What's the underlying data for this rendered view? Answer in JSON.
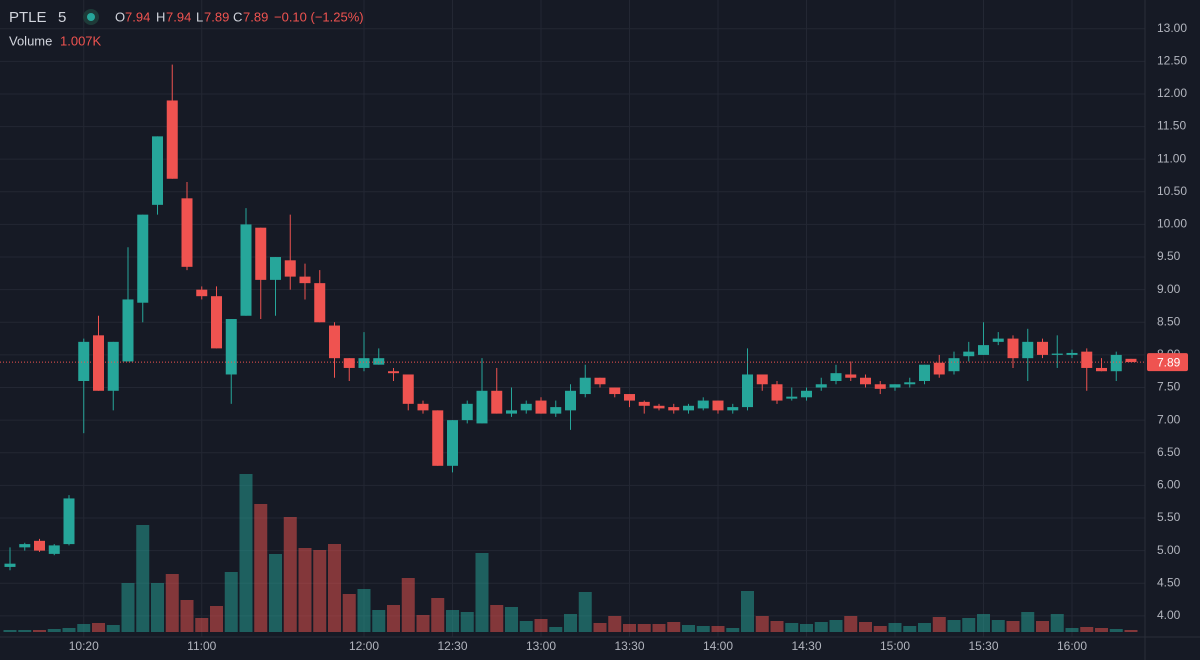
{
  "header": {
    "symbol": "PTLE",
    "interval": "5",
    "open_label": "O",
    "high_label": "H",
    "low_label": "L",
    "close_label": "C",
    "change": "−0.10 (−1.25%)",
    "volume_label": "Volume",
    "volume_value": "1.007K"
  },
  "chart_data": {
    "type": "candlestick",
    "categories": [
      null,
      null,
      null,
      null,
      null,
      "10:20",
      null,
      null,
      null,
      null,
      null,
      null,
      null,
      "11:00",
      null,
      null,
      null,
      null,
      null,
      null,
      null,
      null,
      null,
      null,
      "12:00",
      null,
      null,
      null,
      null,
      null,
      "12:30",
      null,
      null,
      null,
      null,
      null,
      "13:00",
      null,
      null,
      null,
      null,
      null,
      "13:30",
      null,
      null,
      null,
      null,
      null,
      "14:00",
      null,
      null,
      null,
      null,
      null,
      "14:30",
      null,
      null,
      null,
      null,
      null,
      "15:00",
      null,
      null,
      null,
      null,
      null,
      "15:30",
      null,
      null,
      null,
      null,
      null,
      "16:00",
      null,
      null,
      null,
      null
    ],
    "open": [
      4.75,
      5.05,
      5.15,
      4.95,
      5.1,
      7.6,
      8.3,
      7.45,
      7.9,
      8.8,
      10.3,
      11.9,
      10.4,
      9.0,
      8.9,
      7.7,
      8.6,
      9.95,
      9.15,
      9.45,
      9.2,
      9.1,
      8.45,
      7.95,
      7.8,
      7.85,
      7.75,
      7.7,
      7.25,
      7.15,
      6.3,
      7.0,
      6.95,
      7.45,
      7.1,
      7.15,
      7.3,
      7.1,
      7.15,
      7.4,
      7.65,
      7.5,
      7.4,
      7.28,
      7.22,
      7.2,
      7.15,
      7.18,
      7.3,
      7.15,
      7.2,
      7.7,
      7.55,
      7.33,
      7.35,
      7.5,
      7.6,
      7.7,
      7.65,
      7.55,
      7.5,
      7.55,
      7.6,
      7.88,
      7.75,
      7.98,
      8.0,
      8.2,
      8.25,
      7.95,
      8.2,
      8.0,
      8.0,
      8.05,
      7.8,
      7.75,
      7.94
    ],
    "high": [
      5.05,
      5.12,
      5.18,
      5.1,
      5.85,
      8.25,
      8.6,
      8.2,
      9.65,
      10.15,
      11.35,
      12.45,
      10.65,
      9.05,
      9.05,
      8.55,
      10.25,
      9.95,
      9.5,
      10.15,
      9.4,
      9.3,
      8.5,
      7.95,
      8.35,
      8.1,
      7.8,
      7.7,
      7.3,
      7.15,
      7.0,
      7.3,
      7.95,
      7.8,
      7.5,
      7.3,
      7.35,
      7.3,
      7.55,
      7.85,
      7.65,
      7.5,
      7.4,
      7.3,
      7.25,
      7.25,
      7.25,
      7.35,
      7.3,
      7.25,
      8.1,
      7.7,
      7.6,
      7.5,
      7.5,
      7.65,
      7.85,
      7.9,
      7.7,
      7.6,
      7.55,
      7.65,
      7.85,
      8.0,
      8.05,
      8.2,
      8.5,
      8.35,
      8.3,
      8.4,
      8.25,
      8.3,
      8.08,
      8.1,
      7.95,
      8.05,
      7.94
    ],
    "low": [
      4.7,
      5.0,
      4.98,
      4.93,
      5.08,
      6.8,
      7.45,
      7.15,
      7.9,
      8.5,
      10.15,
      10.7,
      9.3,
      8.85,
      8.1,
      7.25,
      8.6,
      8.55,
      8.6,
      9.0,
      8.85,
      8.5,
      7.65,
      7.6,
      7.75,
      7.85,
      7.6,
      7.15,
      7.1,
      6.3,
      6.2,
      6.95,
      6.95,
      7.1,
      7.05,
      7.1,
      7.1,
      7.05,
      6.85,
      7.35,
      7.5,
      7.35,
      7.2,
      7.1,
      7.15,
      7.1,
      7.1,
      7.15,
      7.1,
      7.1,
      7.15,
      7.45,
      7.25,
      7.3,
      7.3,
      7.45,
      7.55,
      7.6,
      7.5,
      7.4,
      7.45,
      7.5,
      7.55,
      7.65,
      7.7,
      7.9,
      8.0,
      8.15,
      7.8,
      7.6,
      7.95,
      7.8,
      7.95,
      7.45,
      7.75,
      7.6,
      7.89
    ],
    "close": [
      4.8,
      5.1,
      5.0,
      5.08,
      5.8,
      8.2,
      7.45,
      8.2,
      8.85,
      10.15,
      11.35,
      10.7,
      9.35,
      8.9,
      8.1,
      8.55,
      10.0,
      9.15,
      9.5,
      9.2,
      9.1,
      8.5,
      7.95,
      7.8,
      7.95,
      7.95,
      7.72,
      7.25,
      7.15,
      6.3,
      7.0,
      7.25,
      7.45,
      7.1,
      7.15,
      7.25,
      7.1,
      7.2,
      7.45,
      7.65,
      7.55,
      7.4,
      7.3,
      7.22,
      7.18,
      7.15,
      7.22,
      7.3,
      7.15,
      7.2,
      7.7,
      7.55,
      7.3,
      7.36,
      7.45,
      7.55,
      7.72,
      7.65,
      7.55,
      7.48,
      7.55,
      7.58,
      7.85,
      7.7,
      7.95,
      8.05,
      8.15,
      8.25,
      7.95,
      8.2,
      8.0,
      8.02,
      8.03,
      7.8,
      7.75,
      8.0,
      7.89
    ],
    "volume": [
      1000,
      1000,
      1000,
      1500,
      2000,
      4000,
      4500,
      3500,
      24500,
      53500,
      24500,
      29000,
      16000,
      7000,
      13000,
      30000,
      79000,
      64000,
      39000,
      57500,
      42000,
      41000,
      44000,
      19000,
      21500,
      11000,
      13500,
      27000,
      8500,
      17000,
      11000,
      10000,
      39500,
      13500,
      12500,
      5500,
      6500,
      2500,
      9000,
      20000,
      4500,
      8000,
      4000,
      4000,
      4000,
      5000,
      3500,
      3000,
      3000,
      2000,
      20500,
      8000,
      5500,
      4500,
      4000,
      5000,
      6000,
      8000,
      5000,
      3000,
      4500,
      3000,
      4500,
      7500,
      6000,
      7000,
      9000,
      6000,
      5500,
      10000,
      5500,
      9000,
      2000,
      2500,
      2000,
      1500,
      1007
    ],
    "up_color": "#26a69a",
    "down_color": "#ef5350",
    "ylim": [
      3.63,
      13.44
    ],
    "y2lim": [
      0,
      100000
    ],
    "yticks": [
      {
        "value": 4,
        "label": "4.00"
      },
      {
        "value": 4.5,
        "label": "4.50"
      },
      {
        "value": 5,
        "label": "5.00"
      },
      {
        "value": 5.5,
        "label": "5.50"
      },
      {
        "value": 6,
        "label": "6.00"
      },
      {
        "value": 6.5,
        "label": "6.50"
      },
      {
        "value": 7,
        "label": "7.00"
      },
      {
        "value": 7.5,
        "label": "7.50"
      },
      {
        "value": 8,
        "label": "8.00"
      },
      {
        "value": 8.5,
        "label": "8.50"
      },
      {
        "value": 9,
        "label": "9.00"
      },
      {
        "value": 9.5,
        "label": "9.50"
      },
      {
        "value": 10,
        "label": "10.00"
      },
      {
        "value": 10.5,
        "label": "10.50"
      },
      {
        "value": 11,
        "label": "11.00"
      },
      {
        "value": 11.5,
        "label": "11.50"
      },
      {
        "value": 12,
        "label": "12.00"
      },
      {
        "value": 12.5,
        "label": "12.50"
      },
      {
        "value": 13,
        "label": "13.00"
      }
    ],
    "grid": true
  }
}
